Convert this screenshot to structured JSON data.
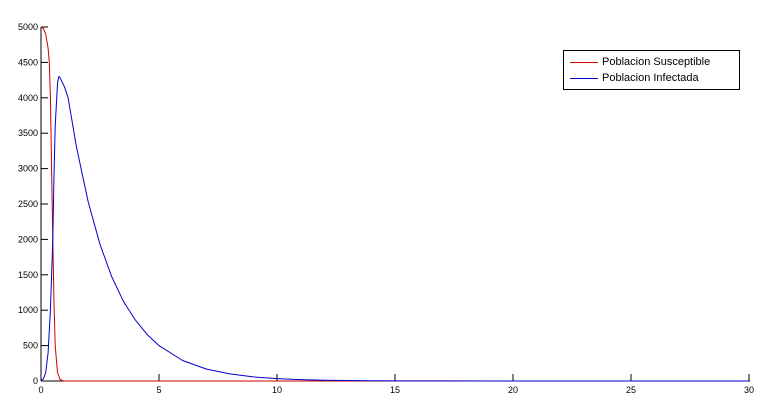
{
  "chart_data": {
    "type": "line",
    "title": "",
    "xlabel": "",
    "ylabel": "",
    "xlim": [
      0,
      30
    ],
    "ylim": [
      0,
      5000
    ],
    "xticks": [
      0,
      5,
      10,
      15,
      20,
      25,
      30
    ],
    "yticks": [
      0,
      500,
      1000,
      1500,
      2000,
      2500,
      3000,
      3500,
      4000,
      4500,
      5000
    ],
    "grid": false,
    "legend_position": "top-right",
    "series": [
      {
        "name": "Poblacion Susceptible",
        "color": "#cc0000",
        "x": [
          0,
          0.1,
          0.2,
          0.3,
          0.35,
          0.4,
          0.45,
          0.5,
          0.55,
          0.6,
          0.7,
          0.8,
          0.9,
          1.0,
          2,
          5,
          10,
          15,
          20,
          25,
          30
        ],
        "y": [
          5000,
          4980,
          4900,
          4700,
          4500,
          4000,
          3000,
          2000,
          1100,
          500,
          120,
          25,
          5,
          0,
          0,
          0,
          0,
          0,
          0,
          0,
          0
        ]
      },
      {
        "name": "Poblacion Infectada",
        "color": "#0000cc",
        "x": [
          0,
          0.1,
          0.2,
          0.3,
          0.4,
          0.5,
          0.55,
          0.6,
          0.7,
          0.75,
          0.8,
          1.0,
          1.15,
          1.5,
          2,
          2.5,
          3,
          3.5,
          4,
          4.5,
          5,
          6,
          7,
          8,
          9,
          10,
          11,
          12,
          13,
          14,
          15,
          17,
          20,
          25,
          30
        ],
        "y": [
          10,
          30,
          120,
          400,
          1000,
          2000,
          2900,
          3600,
          4200,
          4300,
          4290,
          4150,
          4000,
          3310,
          2530,
          1930,
          1470,
          1120,
          860,
          655,
          500,
          290,
          170,
          100,
          58,
          34,
          20,
          12,
          7,
          4,
          2,
          1,
          0,
          0,
          0
        ]
      }
    ]
  }
}
